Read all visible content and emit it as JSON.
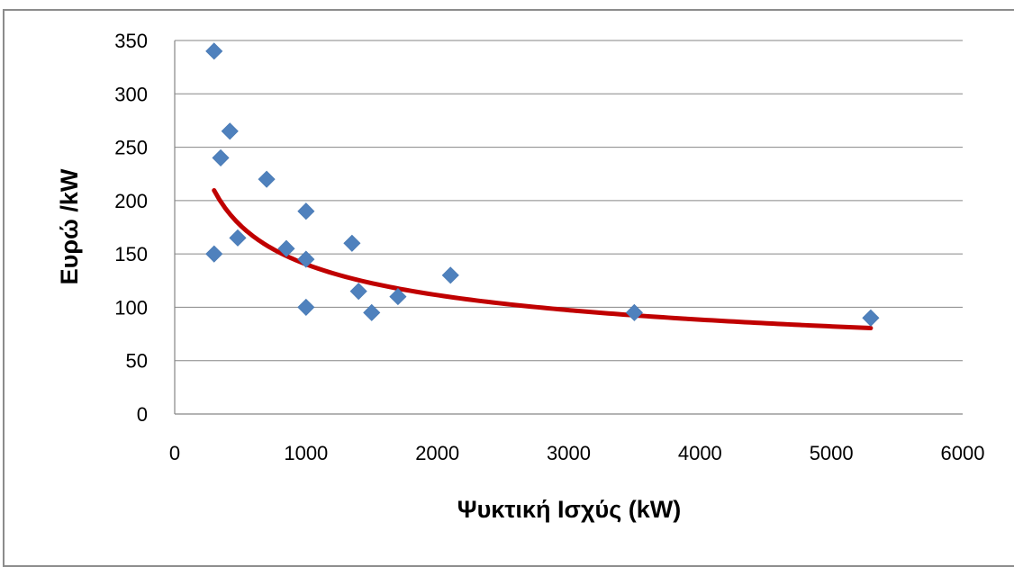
{
  "chart_data": {
    "type": "scatter",
    "title": "",
    "xlabel": "Ψυκτική Ισχύς (kW)",
    "ylabel": "Ευρώ /kW",
    "xlim": [
      0,
      6000
    ],
    "ylim": [
      0,
      350
    ],
    "x_ticks": [
      0,
      1000,
      2000,
      3000,
      4000,
      5000,
      6000
    ],
    "y_ticks": [
      0,
      50,
      100,
      150,
      200,
      250,
      300,
      350
    ],
    "grid": "horizontal",
    "legend": "none",
    "series": [
      {
        "marker": "diamond",
        "color": "#4f81bd",
        "points": [
          [
            300,
            340
          ],
          [
            420,
            265
          ],
          [
            350,
            240
          ],
          [
            700,
            220
          ],
          [
            1000,
            190
          ],
          [
            480,
            165
          ],
          [
            1350,
            160
          ],
          [
            850,
            155
          ],
          [
            300,
            150
          ],
          [
            1000,
            145
          ],
          [
            2100,
            130
          ],
          [
            1400,
            115
          ],
          [
            1700,
            110
          ],
          [
            1000,
            100
          ],
          [
            1500,
            95
          ],
          [
            3500,
            95
          ],
          [
            5300,
            90
          ]
        ]
      }
    ],
    "trendline": {
      "type": "power",
      "color": "#c00000",
      "a": 1400,
      "b": -0.333,
      "x_range": [
        300,
        5300
      ]
    }
  }
}
